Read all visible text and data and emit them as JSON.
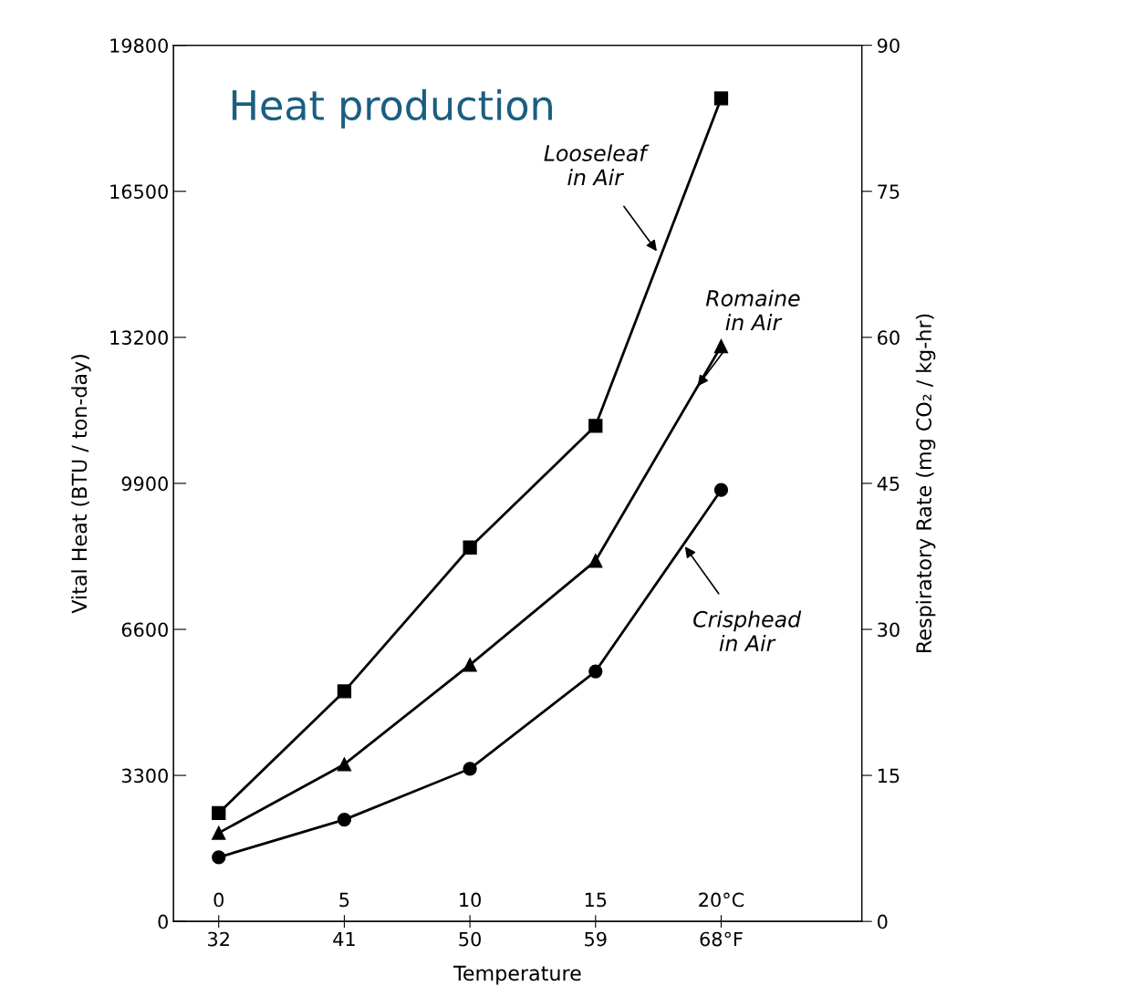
{
  "chart_data": {
    "type": "line",
    "title": "Heat production",
    "xlabel": "Temperature",
    "ylabel": "Vital Heat (BTU / ton-day)",
    "y2label": "Respiratory Rate (mg CO₂ / kg-hr)",
    "x": [
      0,
      5,
      10,
      15,
      20
    ],
    "xlim": [
      -1.8,
      25.6
    ],
    "xticks": [
      0,
      5,
      10,
      15,
      {
        "value": 20,
        "label": "20°C"
      }
    ],
    "x2lim": [
      28.76,
      78.08
    ],
    "x2ticks": [
      32,
      41,
      50,
      59,
      {
        "value": 68,
        "label": "68°F"
      }
    ],
    "ylim": [
      0,
      19800
    ],
    "yticks": [
      0,
      3300,
      6600,
      9900,
      13200,
      16500,
      19800
    ],
    "y2lim": [
      0,
      90
    ],
    "y2ticks": [
      0,
      15,
      30,
      45,
      60,
      75,
      90
    ],
    "series": [
      {
        "color": "#000000",
        "marker": "square",
        "values": [
          2450,
          5200,
          8450,
          11200,
          18600
        ]
      },
      {
        "color": "#000000",
        "marker": "triangle",
        "values": [
          2000,
          3550,
          5800,
          8150,
          13000
        ]
      },
      {
        "color": "#000000",
        "marker": "circle",
        "values": [
          1450,
          2300,
          3450,
          5650,
          9750
        ]
      }
    ],
    "annotations": [
      {
        "text": "Looseleaf\nin Air",
        "x": 17.5,
        "y": 15100
      },
      {
        "text": "Romaine\nin Air",
        "x": 19,
        "y": 12050
      },
      {
        "text": "Crisphead\nin Air",
        "x": 18.5,
        "y": 8520
      }
    ],
    "line_style": "solid",
    "grid": false,
    "legend": false
  }
}
